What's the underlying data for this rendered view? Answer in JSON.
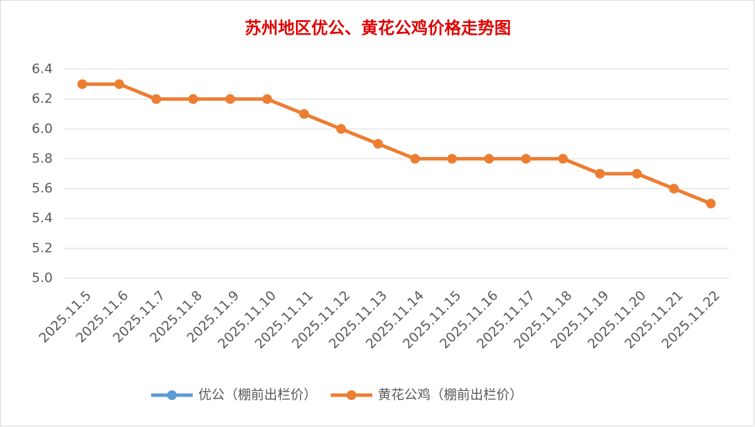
{
  "chart_data": {
    "type": "line",
    "title": "苏州地区优公、黄花公鸡价格走势图",
    "categories": [
      "2025.11.5",
      "2025.11.6",
      "2025.11.7",
      "2025.11.8",
      "2025.11.9",
      "2025.11.10",
      "2025.11.11",
      "2025.11.12",
      "2025.11.13",
      "2025.11.14",
      "2025.11.15",
      "2025.11.16",
      "2025.11.17",
      "2025.11.18",
      "2025.11.19",
      "2025.11.20",
      "2025.11.21",
      "2025.11.22"
    ],
    "series": [
      {
        "name": "优公（棚前出栏价）",
        "color": "#5b9bd5",
        "values": [
          null,
          null,
          null,
          null,
          null,
          null,
          null,
          null,
          null,
          null,
          null,
          null,
          null,
          null,
          null,
          null,
          null,
          null
        ]
      },
      {
        "name": "黄花公鸡（棚前出栏价）",
        "color": "#ed7d31",
        "values": [
          6.3,
          6.3,
          6.2,
          6.2,
          6.2,
          6.2,
          6.1,
          6.0,
          5.9,
          5.8,
          5.8,
          5.8,
          5.8,
          5.8,
          5.7,
          5.7,
          5.6,
          5.5
        ]
      }
    ],
    "ylim": [
      5.0,
      6.4
    ],
    "yticks": [
      {
        "value": 5.0,
        "label": "5.0"
      },
      5.2,
      5.4,
      5.6,
      5.8,
      {
        "value": 6.0,
        "label": "6.0"
      },
      6.2,
      6.4
    ],
    "grid": true,
    "legend": "bottom"
  }
}
